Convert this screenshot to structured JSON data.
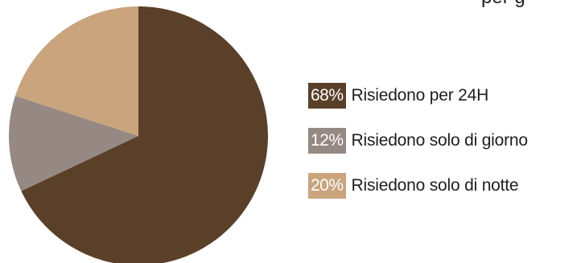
{
  "top_text_fragment": "per g",
  "chart_data": {
    "type": "pie",
    "title": "",
    "slices": [
      {
        "pct_label": "68%",
        "label": "Risiedono per 24H",
        "value": 68,
        "color": "#5a4029"
      },
      {
        "pct_label": "12%",
        "label": "Risiedono solo di giorno",
        "value": 12,
        "color": "#968883"
      },
      {
        "pct_label": "20%",
        "label": "Risiedono solo di notte",
        "value": 20,
        "color": "#c9a47d"
      }
    ],
    "start_angle_deg": 0,
    "direction": "clockwise",
    "legend_position": "right"
  }
}
